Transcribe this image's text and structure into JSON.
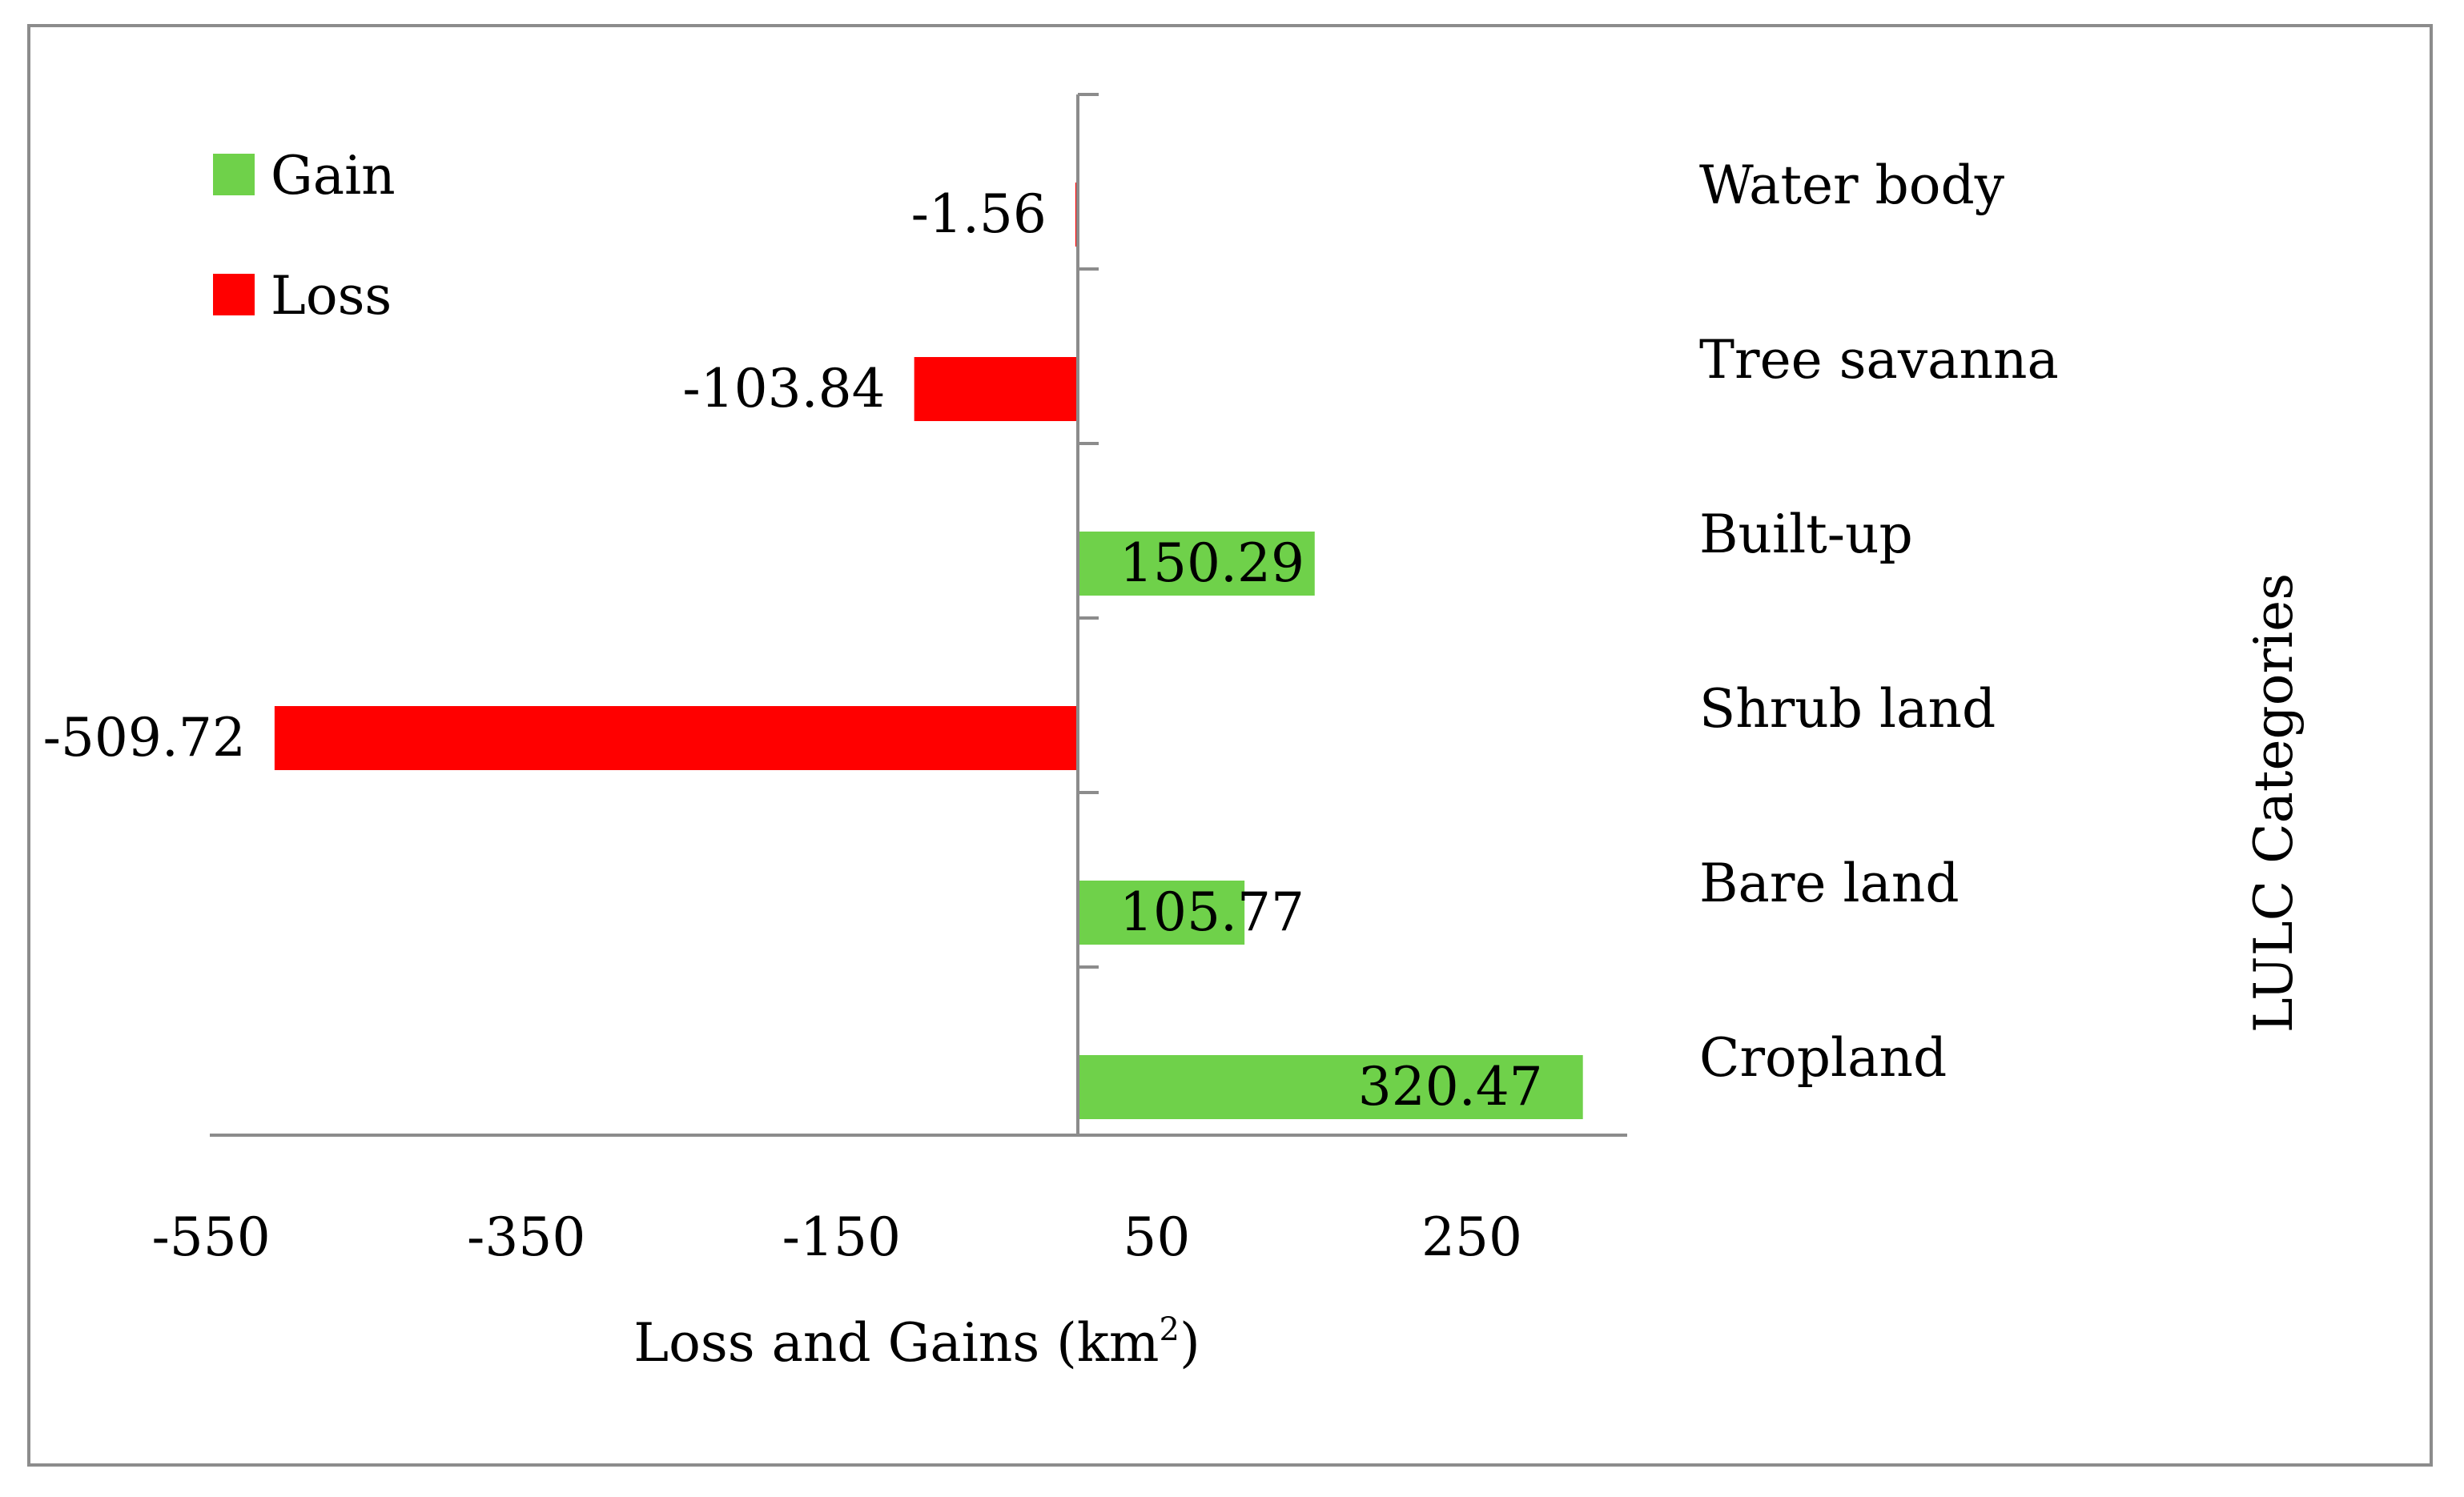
{
  "chart_data": {
    "type": "bar",
    "orientation": "horizontal",
    "title": "",
    "xlabel": "Loss and Gains (km",
    "xlabel_sup": "2",
    "xlabel_close": ")",
    "ylabel": "LULC Categories",
    "xlim": [
      -550,
      350
    ],
    "xticks": [
      "-550",
      "-350",
      "-150",
      "50",
      "250"
    ],
    "tick_values": [
      -550,
      -350,
      -150,
      50,
      250
    ],
    "categories": [
      "Water body",
      "Tree savanna",
      "Built-up",
      "Shrub land",
      "Bare land",
      "Cropland"
    ],
    "values": [
      -1.56,
      -103.84,
      150.29,
      -509.72,
      105.77,
      320.47
    ],
    "value_labels": [
      "-1.56",
      "-103.84",
      "150.29",
      "-509.72",
      "105.77",
      "320.47"
    ],
    "series_type": [
      "loss",
      "loss",
      "gain",
      "loss",
      "gain",
      "gain"
    ],
    "legend": [
      {
        "key": "gain",
        "label": "Gain",
        "color": "#6fd14a"
      },
      {
        "key": "loss",
        "label": "Loss",
        "color": "#ff0000"
      }
    ],
    "legend_position": "top-left",
    "grid": false
  }
}
